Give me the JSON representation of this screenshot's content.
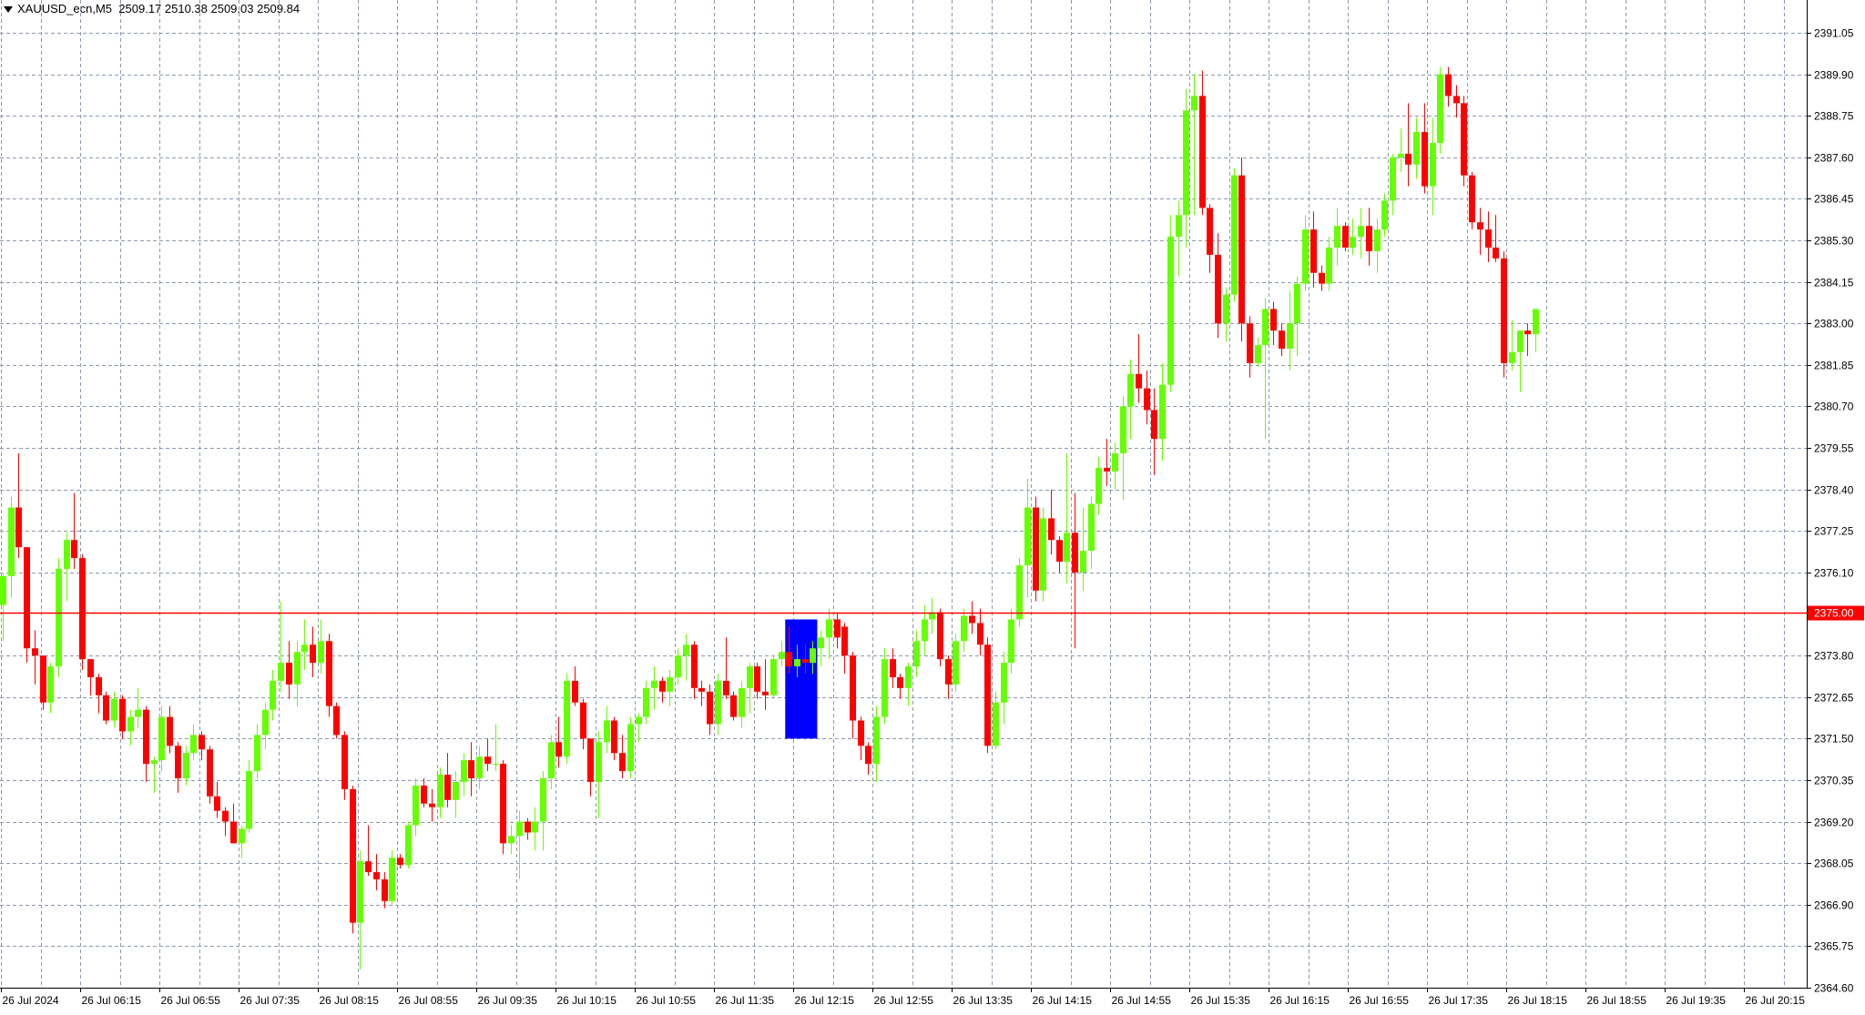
{
  "header": {
    "symbol": "XAUUSD_ecn,M5",
    "ohlc": "2509.17 2510.38 2509.03 2509.84"
  },
  "colors": {
    "background": "#ffffff",
    "grid": "#8c9aae",
    "axis": "#000000",
    "bull": "#66ff00",
    "bear": "#ff0000",
    "level_line": "#ff0000",
    "level_label_bg": "#ff0000",
    "level_label_text": "#ffffff",
    "highlight_box": "#0000ff"
  },
  "chart_data": {
    "type": "candlestick",
    "timeframe": "M5",
    "grid": true,
    "ylim": [
      2364.6,
      2391.05
    ],
    "y_ticks": [
      "2391.05",
      "2389.90",
      "2388.75",
      "2387.60",
      "2386.45",
      "2385.30",
      "2384.15",
      "2383.00",
      "2381.85",
      "2380.70",
      "2379.55",
      "2378.40",
      "2377.25",
      "2376.10",
      "2375.00",
      "2373.80",
      "2372.65",
      "2371.50",
      "2370.35",
      "2369.20",
      "2368.05",
      "2366.90",
      "2365.75",
      "2364.60"
    ],
    "x_ticks": [
      "26 Jul 2024",
      "26 Jul 06:15",
      "26 Jul 06:55",
      "26 Jul 07:35",
      "26 Jul 08:15",
      "26 Jul 08:55",
      "26 Jul 09:35",
      "26 Jul 10:15",
      "26 Jul 10:55",
      "26 Jul 11:35",
      "26 Jul 12:15",
      "26 Jul 12:55",
      "26 Jul 13:35",
      "26 Jul 14:15",
      "26 Jul 14:55",
      "26 Jul 15:35",
      "26 Jul 16:15",
      "26 Jul 16:55",
      "26 Jul 17:35",
      "26 Jul 18:15",
      "26 Jul 18:55",
      "26 Jul 19:35",
      "26 Jul 20:15"
    ],
    "horizontal_level": {
      "value": 2375.0,
      "label": "2375.00"
    },
    "highlight_zone": {
      "from_index": 99,
      "to_index": 102,
      "top": 2374.8,
      "bottom": 2371.5
    },
    "candles": [
      [
        2375.2,
        2376.1,
        2374.2,
        2376.0
      ],
      [
        2376.0,
        2378.2,
        2375.4,
        2377.9
      ],
      [
        2377.9,
        2379.4,
        2376.5,
        2376.8
      ],
      [
        2376.8,
        2376.8,
        2373.6,
        2374.0
      ],
      [
        2374.0,
        2374.5,
        2373.0,
        2373.8
      ],
      [
        2373.8,
        2373.8,
        2372.3,
        2372.5
      ],
      [
        2372.5,
        2373.6,
        2372.2,
        2373.5
      ],
      [
        2373.5,
        2376.5,
        2373.2,
        2376.2
      ],
      [
        2376.2,
        2377.2,
        2375.3,
        2377.0
      ],
      [
        2377.0,
        2378.3,
        2376.2,
        2376.5
      ],
      [
        2376.5,
        2376.6,
        2373.4,
        2373.7
      ],
      [
        2373.7,
        2373.7,
        2372.7,
        2373.2
      ],
      [
        2373.2,
        2373.3,
        2372.2,
        2372.7
      ],
      [
        2372.7,
        2372.8,
        2371.9,
        2372.0
      ],
      [
        2372.0,
        2372.8,
        2371.8,
        2372.6
      ],
      [
        2372.6,
        2372.7,
        2371.5,
        2371.7
      ],
      [
        2371.7,
        2372.3,
        2371.3,
        2372.1
      ],
      [
        2372.1,
        2372.9,
        2371.8,
        2372.3
      ],
      [
        2372.3,
        2372.4,
        2370.3,
        2370.8
      ],
      [
        2370.8,
        2371.0,
        2370.0,
        2370.9
      ],
      [
        2370.9,
        2372.4,
        2370.6,
        2372.1
      ],
      [
        2372.1,
        2372.4,
        2371.1,
        2371.3
      ],
      [
        2371.3,
        2371.4,
        2370.0,
        2370.4
      ],
      [
        2370.4,
        2371.3,
        2370.2,
        2371.1
      ],
      [
        2371.1,
        2371.9,
        2370.9,
        2371.6
      ],
      [
        2371.6,
        2371.7,
        2370.9,
        2371.2
      ],
      [
        2371.2,
        2371.3,
        2369.7,
        2369.9
      ],
      [
        2369.9,
        2370.3,
        2369.3,
        2369.5
      ],
      [
        2369.5,
        2369.6,
        2368.8,
        2369.2
      ],
      [
        2369.2,
        2369.7,
        2368.6,
        2368.6
      ],
      [
        2368.6,
        2369.1,
        2368.2,
        2369.0
      ],
      [
        2369.0,
        2370.9,
        2368.9,
        2370.6
      ],
      [
        2370.6,
        2371.9,
        2370.4,
        2371.6
      ],
      [
        2371.6,
        2372.5,
        2371.2,
        2372.3
      ],
      [
        2372.3,
        2373.4,
        2372.0,
        2373.1
      ],
      [
        2373.1,
        2375.3,
        2372.8,
        2373.6
      ],
      [
        2373.6,
        2374.2,
        2372.6,
        2373.0
      ],
      [
        2373.0,
        2374.2,
        2372.4,
        2373.9
      ],
      [
        2373.9,
        2374.8,
        2373.4,
        2374.1
      ],
      [
        2374.1,
        2374.6,
        2373.2,
        2373.6
      ],
      [
        2373.6,
        2374.8,
        2373.3,
        2374.2
      ],
      [
        2374.2,
        2374.4,
        2372.1,
        2372.4
      ],
      [
        2372.4,
        2372.5,
        2371.5,
        2371.6
      ],
      [
        2371.6,
        2371.7,
        2369.8,
        2370.1
      ],
      [
        2370.1,
        2370.2,
        2366.1,
        2366.4
      ],
      [
        2366.4,
        2368.4,
        2365.1,
        2368.1
      ],
      [
        2368.1,
        2369.1,
        2367.7,
        2367.8
      ],
      [
        2367.8,
        2368.3,
        2367.3,
        2367.6
      ],
      [
        2367.6,
        2367.8,
        2366.8,
        2367.0
      ],
      [
        2367.0,
        2368.4,
        2366.9,
        2368.2
      ],
      [
        2368.2,
        2368.3,
        2367.9,
        2368.0
      ],
      [
        2368.0,
        2369.2,
        2367.9,
        2369.1
      ],
      [
        2369.1,
        2370.4,
        2368.8,
        2370.2
      ],
      [
        2370.2,
        2370.4,
        2369.6,
        2369.7
      ],
      [
        2369.7,
        2370.1,
        2369.2,
        2369.6
      ],
      [
        2369.6,
        2370.7,
        2369.3,
        2370.5
      ],
      [
        2370.5,
        2371.1,
        2369.6,
        2369.8
      ],
      [
        2369.8,
        2370.6,
        2369.3,
        2370.3
      ],
      [
        2370.3,
        2371.1,
        2369.9,
        2370.9
      ],
      [
        2370.9,
        2371.4,
        2369.9,
        2370.4
      ],
      [
        2370.4,
        2371.3,
        2370.1,
        2371.0
      ],
      [
        2371.0,
        2371.5,
        2370.6,
        2370.8
      ],
      [
        2370.8,
        2371.9,
        2370.6,
        2370.8
      ],
      [
        2370.8,
        2370.9,
        2368.3,
        2368.6
      ],
      [
        2368.6,
        2369.1,
        2368.3,
        2368.8
      ],
      [
        2368.8,
        2369.5,
        2367.6,
        2369.2
      ],
      [
        2369.2,
        2369.3,
        2368.7,
        2368.9
      ],
      [
        2368.9,
        2369.6,
        2368.4,
        2369.2
      ],
      [
        2369.2,
        2370.6,
        2368.4,
        2370.4
      ],
      [
        2370.4,
        2371.6,
        2370.1,
        2371.4
      ],
      [
        2371.4,
        2372.1,
        2370.7,
        2371.0
      ],
      [
        2371.0,
        2373.3,
        2370.8,
        2373.1
      ],
      [
        2373.1,
        2373.5,
        2372.4,
        2372.5
      ],
      [
        2372.5,
        2372.6,
        2371.2,
        2371.5
      ],
      [
        2371.5,
        2371.5,
        2369.9,
        2370.3
      ],
      [
        2370.3,
        2371.7,
        2369.3,
        2371.4
      ],
      [
        2371.4,
        2372.4,
        2371.1,
        2372.0
      ],
      [
        2372.0,
        2372.1,
        2370.9,
        2371.1
      ],
      [
        2371.1,
        2371.6,
        2370.4,
        2370.6
      ],
      [
        2370.6,
        2372.1,
        2370.4,
        2371.9
      ],
      [
        2371.9,
        2372.2,
        2371.4,
        2372.1
      ],
      [
        2372.1,
        2373.1,
        2371.9,
        2372.9
      ],
      [
        2372.9,
        2373.5,
        2372.3,
        2373.1
      ],
      [
        2373.1,
        2373.2,
        2372.5,
        2372.8
      ],
      [
        2372.8,
        2373.4,
        2372.4,
        2373.2
      ],
      [
        2373.2,
        2374.0,
        2373.0,
        2373.8
      ],
      [
        2373.8,
        2374.4,
        2373.1,
        2374.1
      ],
      [
        2374.1,
        2374.2,
        2372.6,
        2372.9
      ],
      [
        2372.9,
        2373.1,
        2372.4,
        2372.8
      ],
      [
        2372.8,
        2373.0,
        2371.6,
        2371.9
      ],
      [
        2371.9,
        2373.3,
        2371.6,
        2373.1
      ],
      [
        2373.1,
        2374.3,
        2372.6,
        2372.7
      ],
      [
        2372.7,
        2372.8,
        2372.0,
        2372.1
      ],
      [
        2372.1,
        2373.1,
        2371.8,
        2372.9
      ],
      [
        2372.9,
        2373.6,
        2372.2,
        2373.5
      ],
      [
        2373.5,
        2373.6,
        2372.6,
        2372.8
      ],
      [
        2372.8,
        2373.7,
        2372.3,
        2372.7
      ],
      [
        2372.7,
        2373.8,
        2372.6,
        2373.7
      ],
      [
        2373.7,
        2374.2,
        2373.5,
        2373.9
      ],
      [
        2373.9,
        2374.6,
        2373.3,
        2373.5
      ],
      [
        2373.5,
        2374.1,
        2373.2,
        2373.7
      ],
      [
        2373.7,
        2374.1,
        2373.3,
        2373.6
      ],
      [
        2373.6,
        2374.2,
        2373.3,
        2374.0
      ],
      [
        2374.0,
        2374.5,
        2373.5,
        2374.3
      ],
      [
        2374.3,
        2375.1,
        2373.7,
        2374.8
      ],
      [
        2374.8,
        2375.0,
        2374.0,
        2374.3
      ],
      [
        2374.6,
        2374.7,
        2373.3,
        2373.8
      ],
      [
        2373.8,
        2373.9,
        2371.5,
        2372.0
      ],
      [
        2372.0,
        2372.1,
        2370.9,
        2371.3
      ],
      [
        2371.3,
        2371.4,
        2370.5,
        2370.8
      ],
      [
        2370.8,
        2372.4,
        2370.3,
        2372.1
      ],
      [
        2372.1,
        2374.0,
        2371.9,
        2373.7
      ],
      [
        2373.7,
        2374.0,
        2372.9,
        2373.2
      ],
      [
        2373.2,
        2373.3,
        2372.6,
        2372.9
      ],
      [
        2372.9,
        2373.6,
        2372.4,
        2373.5
      ],
      [
        2373.5,
        2374.5,
        2373.2,
        2374.2
      ],
      [
        2374.2,
        2375.2,
        2373.8,
        2374.8
      ],
      [
        2374.8,
        2375.4,
        2374.4,
        2375.0
      ],
      [
        2375.0,
        2375.1,
        2373.5,
        2373.7
      ],
      [
        2373.7,
        2373.8,
        2372.6,
        2373.0
      ],
      [
        2373.0,
        2374.4,
        2372.8,
        2374.2
      ],
      [
        2374.2,
        2375.1,
        2373.9,
        2374.9
      ],
      [
        2374.9,
        2375.3,
        2374.4,
        2374.7
      ],
      [
        2374.7,
        2375.1,
        2373.8,
        2374.1
      ],
      [
        2374.1,
        2374.3,
        2371.1,
        2371.3
      ],
      [
        2371.3,
        2372.8,
        2371.2,
        2372.5
      ],
      [
        2372.5,
        2373.9,
        2371.9,
        2373.6
      ],
      [
        2373.6,
        2375.1,
        2373.3,
        2374.8
      ],
      [
        2374.8,
        2376.5,
        2374.6,
        2376.3
      ],
      [
        2376.3,
        2378.7,
        2375.4,
        2377.9
      ],
      [
        2377.9,
        2378.2,
        2375.3,
        2375.6
      ],
      [
        2375.6,
        2377.9,
        2375.3,
        2377.6
      ],
      [
        2377.6,
        2378.4,
        2376.6,
        2377.0
      ],
      [
        2377.0,
        2377.1,
        2376.1,
        2376.4
      ],
      [
        2376.4,
        2379.4,
        2375.8,
        2377.2
      ],
      [
        2377.2,
        2378.3,
        2374.0,
        2376.1
      ],
      [
        2376.1,
        2377.9,
        2375.6,
        2376.7
      ],
      [
        2376.7,
        2378.2,
        2376.2,
        2378.0
      ],
      [
        2378.0,
        2379.3,
        2377.7,
        2379.0
      ],
      [
        2379.0,
        2379.8,
        2378.5,
        2378.9
      ],
      [
        2378.9,
        2379.7,
        2378.4,
        2379.4
      ],
      [
        2379.4,
        2381.0,
        2378.1,
        2380.7
      ],
      [
        2380.7,
        2382.0,
        2379.8,
        2381.6
      ],
      [
        2381.6,
        2382.7,
        2380.8,
        2381.2
      ],
      [
        2381.2,
        2381.7,
        2380.2,
        2380.6
      ],
      [
        2380.6,
        2381.2,
        2378.8,
        2379.8
      ],
      [
        2379.8,
        2381.9,
        2379.2,
        2381.3
      ],
      [
        2381.3,
        2386.0,
        2381.1,
        2385.4
      ],
      [
        2385.4,
        2386.4,
        2384.3,
        2386.0
      ],
      [
        2386.0,
        2389.5,
        2385.1,
        2388.9
      ],
      [
        2388.9,
        2389.9,
        2386.0,
        2389.3
      ],
      [
        2389.3,
        2390.0,
        2386.0,
        2386.2
      ],
      [
        2386.2,
        2386.3,
        2384.4,
        2384.9
      ],
      [
        2384.9,
        2385.5,
        2382.6,
        2383.0
      ],
      [
        2383.0,
        2384.0,
        2382.5,
        2383.8
      ],
      [
        2383.8,
        2387.3,
        2383.6,
        2387.1
      ],
      [
        2387.1,
        2387.6,
        2382.5,
        2383.0
      ],
      [
        2383.0,
        2383.2,
        2381.5,
        2381.9
      ],
      [
        2381.9,
        2382.6,
        2381.8,
        2382.4
      ],
      [
        2382.4,
        2383.7,
        2379.8,
        2383.4
      ],
      [
        2383.4,
        2383.6,
        2382.4,
        2382.8
      ],
      [
        2382.8,
        2383.0,
        2382.1,
        2382.3
      ],
      [
        2382.3,
        2383.9,
        2381.7,
        2383.0
      ],
      [
        2383.0,
        2384.3,
        2382.1,
        2384.1
      ],
      [
        2384.1,
        2386.0,
        2383.9,
        2385.6
      ],
      [
        2385.6,
        2386.1,
        2384.0,
        2384.4
      ],
      [
        2384.4,
        2384.6,
        2383.9,
        2384.1
      ],
      [
        2384.1,
        2385.4,
        2383.9,
        2385.1
      ],
      [
        2385.1,
        2386.2,
        2384.6,
        2385.7
      ],
      [
        2385.7,
        2385.8,
        2385.0,
        2385.1
      ],
      [
        2385.1,
        2385.9,
        2384.9,
        2385.4
      ],
      [
        2385.4,
        2386.2,
        2384.8,
        2385.7
      ],
      [
        2385.7,
        2386.2,
        2384.6,
        2385.0
      ],
      [
        2385.0,
        2385.9,
        2384.4,
        2385.6
      ],
      [
        2385.6,
        2386.6,
        2385.4,
        2386.4
      ],
      [
        2386.4,
        2387.7,
        2386.0,
        2387.6
      ],
      [
        2387.6,
        2388.4,
        2387.2,
        2387.7
      ],
      [
        2387.7,
        2389.1,
        2386.8,
        2387.4
      ],
      [
        2387.4,
        2388.7,
        2387.0,
        2388.3
      ],
      [
        2388.3,
        2389.1,
        2386.6,
        2386.8
      ],
      [
        2386.8,
        2388.7,
        2386.0,
        2388.0
      ],
      [
        2388.0,
        2390.1,
        2387.7,
        2389.9
      ],
      [
        2389.9,
        2390.1,
        2389.0,
        2389.3
      ],
      [
        2389.3,
        2389.6,
        2388.7,
        2389.1
      ],
      [
        2389.1,
        2389.3,
        2386.8,
        2387.1
      ],
      [
        2387.1,
        2387.2,
        2385.6,
        2385.8
      ],
      [
        2385.8,
        2386.2,
        2384.9,
        2385.6
      ],
      [
        2385.6,
        2386.1,
        2384.7,
        2385.1
      ],
      [
        2385.1,
        2386.0,
        2384.7,
        2384.8
      ],
      [
        2384.8,
        2385.0,
        2381.5,
        2381.9
      ],
      [
        2381.9,
        2383.1,
        2381.7,
        2382.2
      ],
      [
        2382.2,
        2382.8,
        2381.1,
        2382.8
      ],
      [
        2382.8,
        2383.0,
        2382.1,
        2382.7
      ],
      [
        2382.7,
        2383.4,
        2382.2,
        2383.4
      ]
    ]
  }
}
